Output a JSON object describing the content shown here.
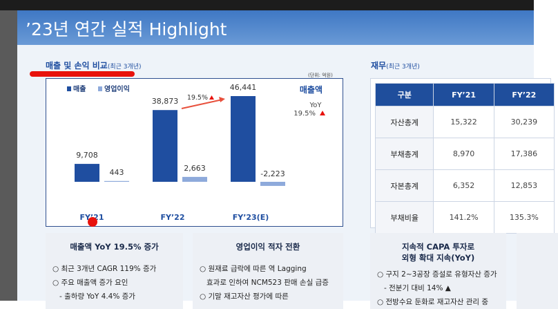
{
  "slide": {
    "title": "’23년 연간 실적 Highlight"
  },
  "left_section": {
    "title": "매출 및 손익 비교",
    "subtitle": "(최근 3개년)",
    "unit": "(단위: 억원)"
  },
  "chart_data": {
    "type": "bar",
    "categories": [
      "FY’21",
      "FY’22",
      "FY’23(E)"
    ],
    "series": [
      {
        "name": "매출",
        "color": "#1f4ea0",
        "values": [
          9708,
          38873,
          46441
        ],
        "value_labels": [
          "9,708",
          "38,873",
          "46,441"
        ]
      },
      {
        "name": "영업이익",
        "color": "#8eaadb",
        "values": [
          443,
          2663,
          -2223
        ],
        "value_labels": [
          "443",
          "2,663",
          "-2,223"
        ]
      }
    ],
    "annotations": {
      "series_label": "매출액",
      "yoy": "YoY",
      "yoy_value": "19.5%",
      "arrow_label": "19.5%"
    }
  },
  "right_section": {
    "title": "재무",
    "subtitle": "(최근 3개년)"
  },
  "table": {
    "header": [
      "구분",
      "FY’21",
      "FY’22"
    ],
    "rows": [
      [
        "자산총계",
        "15,322",
        "30,239"
      ],
      [
        "부채총계",
        "8,970",
        "17,386"
      ],
      [
        "자본총계",
        "6,352",
        "12,853"
      ],
      [
        "부채비율",
        "141.2%",
        "135.3%"
      ]
    ]
  },
  "boxes": [
    {
      "title": [
        "매출액 YoY 19.5% 증가"
      ],
      "items": [
        "○ 최근 3개년 CAGR 119% 증가",
        "○ 주요 매출액 증가 요인",
        "- 출하량 YoY 4.4% 증가"
      ]
    },
    {
      "title": [
        "영업이익 적자 전환"
      ],
      "items": [
        "○ 원재료 급락에 따른 역 Lagging",
        "효과로 인하여 NCM523 판매 손실 급증",
        "○ 기말 재고자산 평가에 따른"
      ]
    },
    {
      "title": [
        "지속적 CAPA 투자로",
        "외형 확대 지속(YoY)"
      ],
      "items": [
        "○ 구지 2~3공장 증설로 유형자산 증가",
        "- 전분기 대비 14% ▲",
        "○ 전방수요 둔화로 재고자산 관리 중"
      ]
    }
  ]
}
